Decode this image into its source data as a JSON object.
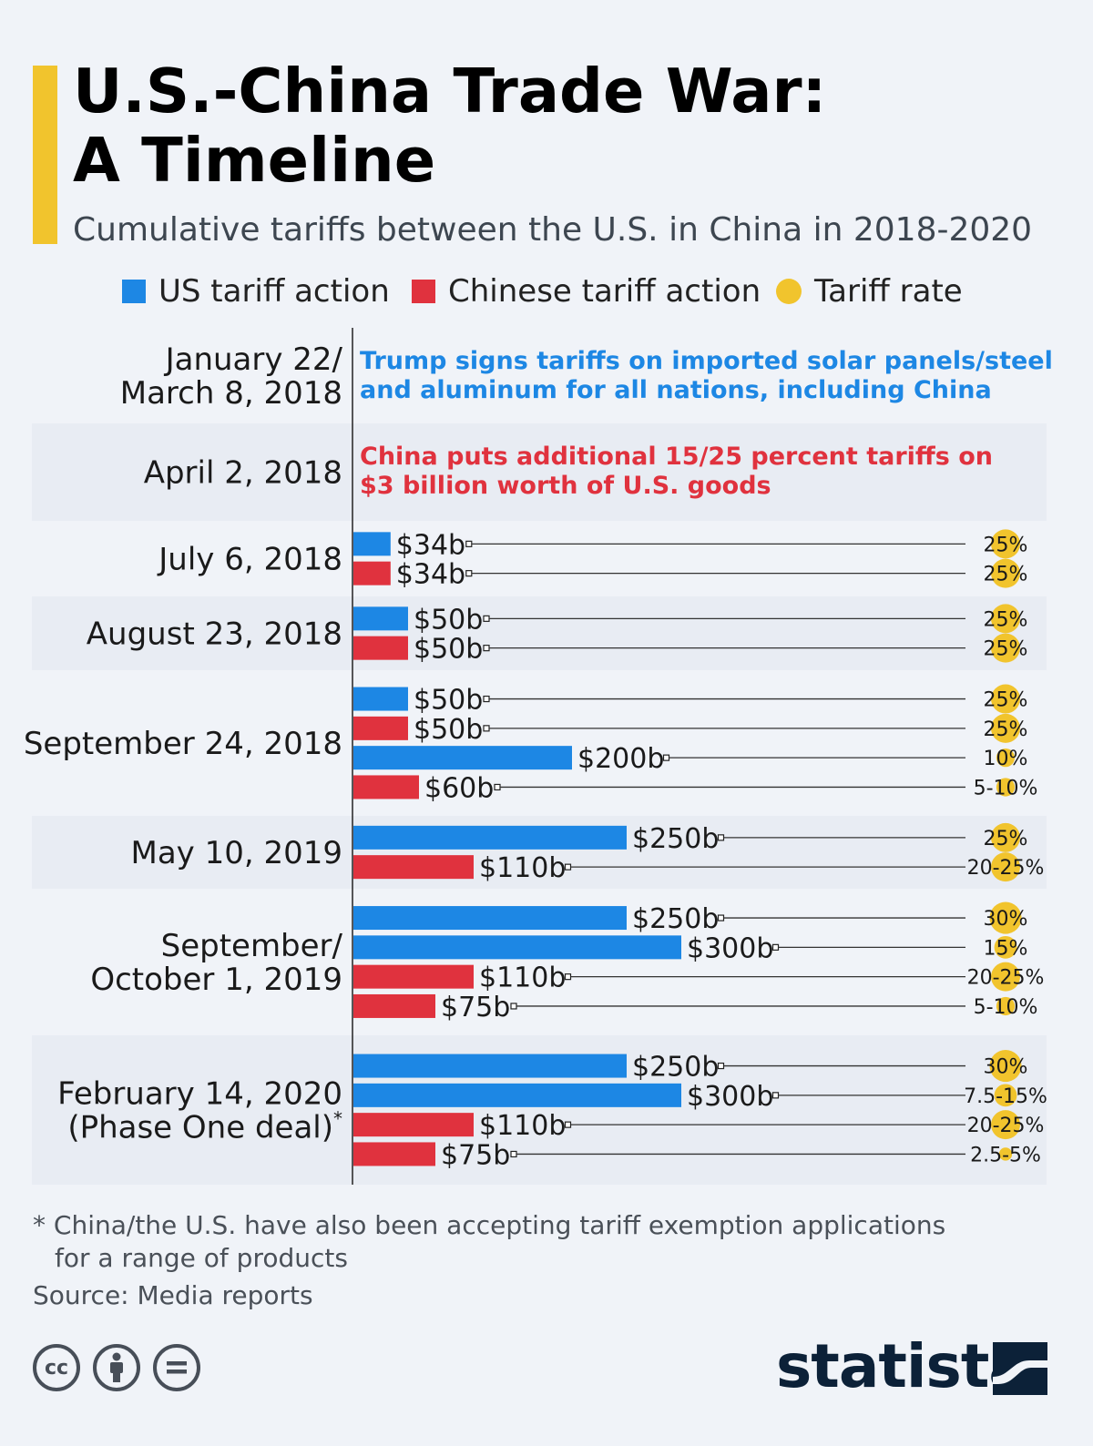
{
  "header": {
    "title_line1": "U.S.-China Trade War:",
    "title_line2": "A Timeline",
    "subtitle": "Cumulative tariffs between the U.S. in China in 2018-2020"
  },
  "legend": {
    "us": "US tariff action",
    "china": "Chinese tariff action",
    "rate": "Tariff rate"
  },
  "colors": {
    "us": "#1d87e4",
    "china": "#e0323e",
    "rate": "#f1c42d",
    "band": "#e8ecf3",
    "bg": "#f0f3f8"
  },
  "chart_data": {
    "type": "bar",
    "orientation": "horizontal",
    "unit": "billion USD",
    "events": [
      {
        "date": "January 22/\nMarch 8, 2018",
        "note": "Trump signs tariffs on imported solar panels/steel\nand aluminum for all nations, including China",
        "note_side": "us",
        "bars": []
      },
      {
        "date": "April 2, 2018",
        "note": "China puts additional 15/25 percent tariffs on\n$3 billion worth of U.S. goods",
        "note_side": "china",
        "bars": []
      },
      {
        "date": "July 6, 2018",
        "bars": [
          {
            "side": "us",
            "value": 34,
            "label": "$34b",
            "rate": "25%",
            "rate_pct": 25
          },
          {
            "side": "china",
            "value": 34,
            "label": "$34b",
            "rate": "25%",
            "rate_pct": 25
          }
        ]
      },
      {
        "date": "August 23, 2018",
        "bars": [
          {
            "side": "us",
            "value": 50,
            "label": "$50b",
            "rate": "25%",
            "rate_pct": 25
          },
          {
            "side": "china",
            "value": 50,
            "label": "$50b",
            "rate": "25%",
            "rate_pct": 25
          }
        ]
      },
      {
        "date": "September 24, 2018",
        "bars": [
          {
            "side": "us",
            "value": 50,
            "label": "$50b",
            "rate": "25%",
            "rate_pct": 25
          },
          {
            "side": "china",
            "value": 50,
            "label": "$50b",
            "rate": "25%",
            "rate_pct": 25
          },
          {
            "side": "us",
            "value": 200,
            "label": "$200b",
            "rate": "10%",
            "rate_pct": 10
          },
          {
            "side": "china",
            "value": 60,
            "label": "$60b",
            "rate": "5-10%",
            "rate_pct": 10
          }
        ]
      },
      {
        "date": "May 10, 2019",
        "bars": [
          {
            "side": "us",
            "value": 250,
            "label": "$250b",
            "rate": "25%",
            "rate_pct": 25
          },
          {
            "side": "china",
            "value": 110,
            "label": "$110b",
            "rate": "20-25%",
            "rate_pct": 25
          }
        ]
      },
      {
        "date": "September/\nOctober 1, 2019",
        "bars": [
          {
            "side": "us",
            "value": 250,
            "label": "$250b",
            "rate": "30%",
            "rate_pct": 30
          },
          {
            "side": "us",
            "value": 300,
            "label": "$300b",
            "rate": "15%",
            "rate_pct": 15
          },
          {
            "side": "china",
            "value": 110,
            "label": "$110b",
            "rate": "20-25%",
            "rate_pct": 25
          },
          {
            "side": "china",
            "value": 75,
            "label": "$75b",
            "rate": "5-10%",
            "rate_pct": 10
          }
        ]
      },
      {
        "date": "February 14, 2020\n(Phase One deal)",
        "date_mark": "*",
        "bars": [
          {
            "side": "us",
            "value": 250,
            "label": "$250b",
            "rate": "30%",
            "rate_pct": 30
          },
          {
            "side": "us",
            "value": 300,
            "label": "$300b",
            "rate": "7.5-15%",
            "rate_pct": 15
          },
          {
            "side": "china",
            "value": 110,
            "label": "$110b",
            "rate": "20-25%",
            "rate_pct": 25
          },
          {
            "side": "china",
            "value": 75,
            "label": "$75b",
            "rate": "2.5-5%",
            "rate_pct": 5
          }
        ]
      }
    ]
  },
  "footer": {
    "footnote_line1": "* China/the U.S. have also been accepting tariff exemption applications",
    "footnote_line2": "for a range of products",
    "source": "Source: Media reports",
    "brand": "statista",
    "cc_icons": [
      "cc-icon",
      "attribution-icon",
      "no-derivatives-icon"
    ]
  }
}
